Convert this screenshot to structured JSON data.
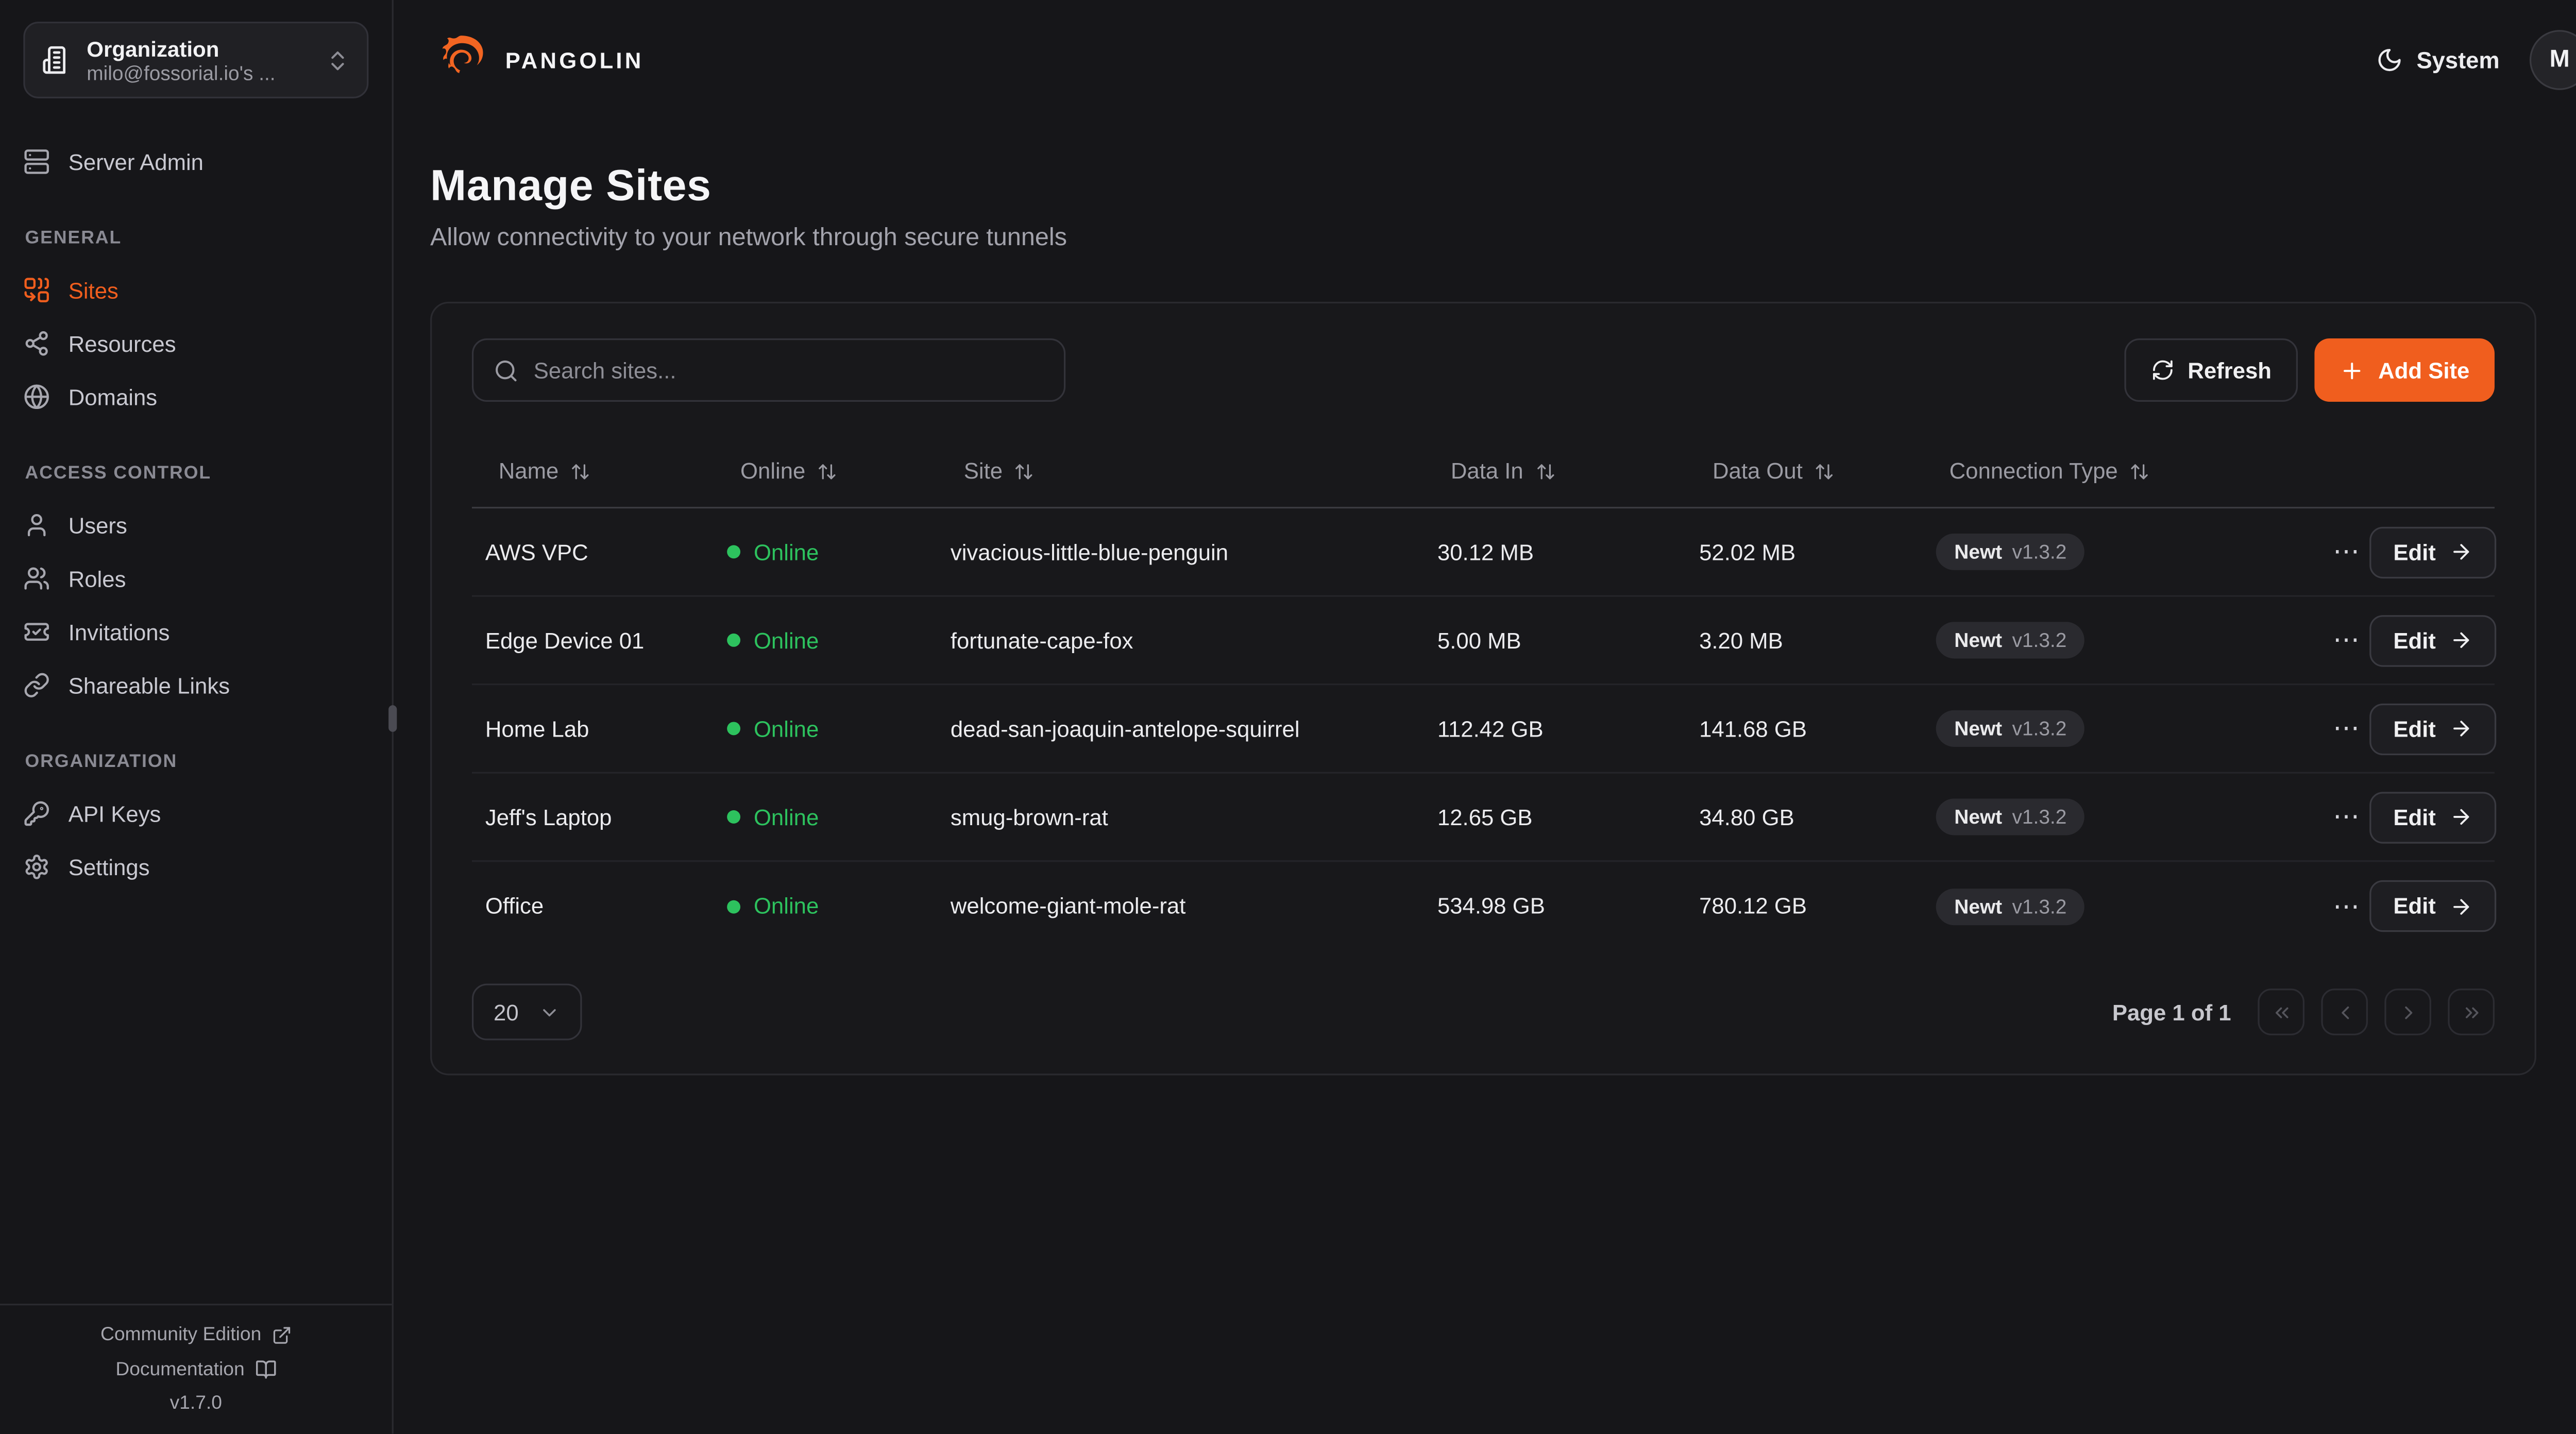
{
  "colors": {
    "accent": "#f05e1e",
    "logo": "#f26522",
    "online": "#2dc25e"
  },
  "brand": {
    "name": "PANGOLIN"
  },
  "org_switcher": {
    "label": "Organization",
    "value": "milo@fossorial.io's ...",
    "icon": "building",
    "trailing_icon": "chevrons-up-down"
  },
  "sidebar": {
    "server_admin": {
      "label": "Server Admin",
      "icon": "server"
    },
    "sections": [
      {
        "label": "GENERAL",
        "items": [
          {
            "label": "Sites",
            "icon": "combine",
            "active": true
          },
          {
            "label": "Resources",
            "icon": "share",
            "active": false
          },
          {
            "label": "Domains",
            "icon": "globe",
            "active": false
          }
        ]
      },
      {
        "label": "ACCESS CONTROL",
        "items": [
          {
            "label": "Users",
            "icon": "user",
            "active": false
          },
          {
            "label": "Roles",
            "icon": "users",
            "active": false
          },
          {
            "label": "Invitations",
            "icon": "ticket",
            "active": false
          },
          {
            "label": "Shareable Links",
            "icon": "link",
            "active": false
          }
        ]
      },
      {
        "label": "ORGANIZATION",
        "items": [
          {
            "label": "API Keys",
            "icon": "key",
            "active": false
          },
          {
            "label": "Settings",
            "icon": "gear",
            "active": false
          }
        ]
      }
    ],
    "footer": {
      "community_label": "Community Edition",
      "community_icon": "external-link",
      "docs_label": "Documentation",
      "docs_icon": "book-open",
      "version": "v1.7.0"
    }
  },
  "header": {
    "theme_label": "System",
    "theme_icon": "moon",
    "avatar_initial": "M"
  },
  "page": {
    "title": "Manage Sites",
    "subtitle": "Allow connectivity to your network through secure tunnels"
  },
  "toolbar": {
    "search_placeholder": "Search sites...",
    "refresh_label": "Refresh",
    "add_site_label": "Add Site"
  },
  "table": {
    "columns": [
      "Name",
      "Online",
      "Site",
      "Data In",
      "Data Out",
      "Connection Type"
    ],
    "edit_label": "Edit",
    "row_menu_glyph": "⋯",
    "rows": [
      {
        "name": "AWS VPC",
        "status": "Online",
        "site": "vivacious-little-blue-penguin",
        "data_in": "30.12 MB",
        "data_out": "52.02 MB",
        "type": "Newt",
        "version": "v1.3.2"
      },
      {
        "name": "Edge Device 01",
        "status": "Online",
        "site": "fortunate-cape-fox",
        "data_in": "5.00 MB",
        "data_out": "3.20 MB",
        "type": "Newt",
        "version": "v1.3.2"
      },
      {
        "name": "Home Lab",
        "status": "Online",
        "site": "dead-san-joaquin-antelope-squirrel",
        "data_in": "112.42 GB",
        "data_out": "141.68 GB",
        "type": "Newt",
        "version": "v1.3.2"
      },
      {
        "name": "Jeff's Laptop",
        "status": "Online",
        "site": "smug-brown-rat",
        "data_in": "12.65 GB",
        "data_out": "34.80 GB",
        "type": "Newt",
        "version": "v1.3.2"
      },
      {
        "name": "Office",
        "status": "Online",
        "site": "welcome-giant-mole-rat",
        "data_in": "534.98 GB",
        "data_out": "780.12 GB",
        "type": "Newt",
        "version": "v1.3.2"
      }
    ]
  },
  "pagination": {
    "page_size": "20",
    "status": "Page 1 of 1",
    "buttons": [
      "first-page",
      "previous-page",
      "next-page",
      "last-page"
    ]
  }
}
